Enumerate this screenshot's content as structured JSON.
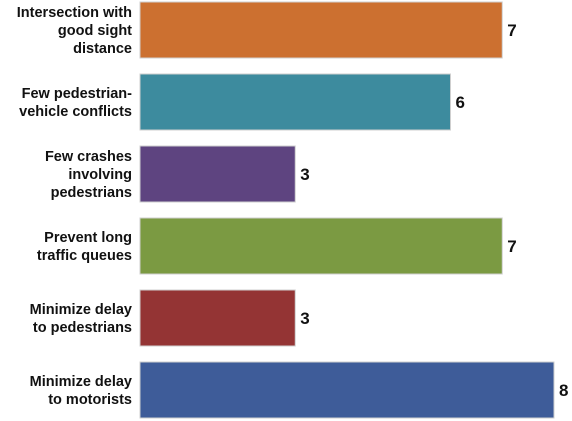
{
  "chart_data": {
    "type": "bar",
    "orientation": "horizontal",
    "categories": [
      [
        "Intersection with",
        "good sight",
        "distance"
      ],
      [
        "Few pedestrian-",
        "vehicle conflicts"
      ],
      [
        "Few crashes",
        "involving",
        "pedestrians"
      ],
      [
        "Prevent long",
        "traffic queues"
      ],
      [
        "Minimize delay",
        "to pedestrians"
      ],
      [
        "Minimize delay",
        "to motorists"
      ]
    ],
    "values": [
      7,
      6,
      3,
      7,
      3,
      8
    ],
    "colors": [
      "#CC7030",
      "#3D8B9E",
      "#5E4480",
      "#7B9A42",
      "#943434",
      "#3E5C99"
    ],
    "xlim": [
      0,
      8
    ],
    "grid": false,
    "legend": "none"
  }
}
